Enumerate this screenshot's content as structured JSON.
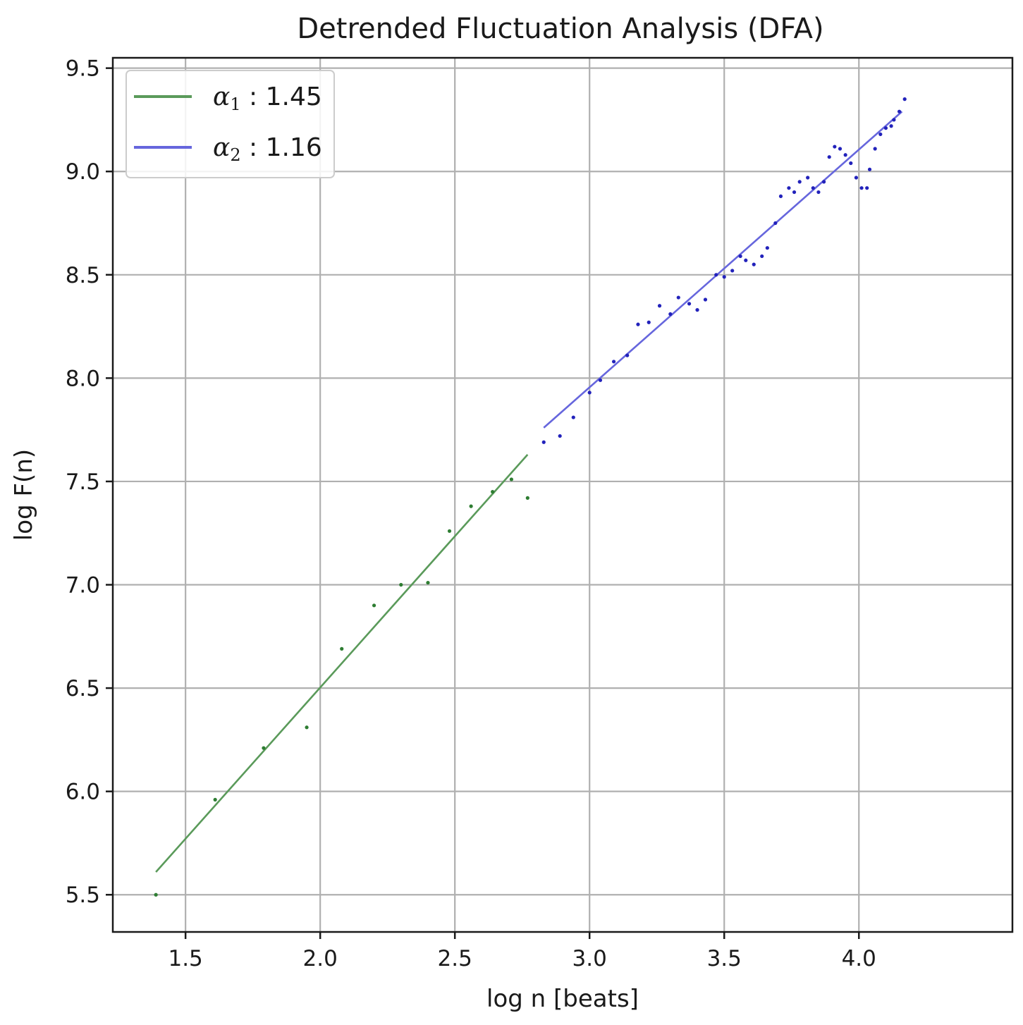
{
  "chart_data": {
    "type": "scatter",
    "title": "Detrended Fluctuation Analysis (DFA)",
    "xlabel": "log n [beats]",
    "ylabel": "log F(n)",
    "xlim": [
      1.23,
      4.57
    ],
    "ylim": [
      5.32,
      9.55
    ],
    "xticks": [
      1.5,
      2.0,
      2.5,
      3.0,
      3.5,
      4.0
    ],
    "xtick_labels": [
      "1.5",
      "2.0",
      "2.5",
      "3.0",
      "3.5",
      "4.0"
    ],
    "yticks": [
      5.5,
      6.0,
      6.5,
      7.0,
      7.5,
      8.0,
      8.5,
      9.0,
      9.5
    ],
    "ytick_labels": [
      "5.5",
      "6.0",
      "6.5",
      "7.0",
      "7.5",
      "8.0",
      "8.5",
      "9.0",
      "9.5"
    ],
    "grid": true,
    "legend": "top-left",
    "series": [
      {
        "name": "α₁ : 1.45",
        "symbol": "α",
        "subscript": "1",
        "value_text": " : 1.45",
        "color": "#5a9a5a",
        "point_color": "#2e7d32",
        "fit_line": {
          "x": [
            1.39,
            2.77
          ],
          "y": [
            5.61,
            7.63
          ]
        },
        "points": [
          [
            1.39,
            5.5
          ],
          [
            1.61,
            5.96
          ],
          [
            1.79,
            6.21
          ],
          [
            1.95,
            6.31
          ],
          [
            2.08,
            6.69
          ],
          [
            2.2,
            6.9
          ],
          [
            2.3,
            7.0
          ],
          [
            2.4,
            7.01
          ],
          [
            2.48,
            7.26
          ],
          [
            2.56,
            7.38
          ],
          [
            2.64,
            7.45
          ],
          [
            2.71,
            7.51
          ],
          [
            2.77,
            7.42
          ]
        ]
      },
      {
        "name": "α₂ : 1.16",
        "symbol": "α",
        "subscript": "2",
        "value_text": " : 1.16",
        "color": "#6666dd",
        "point_color": "#2222bb",
        "fit_line": {
          "x": [
            2.83,
            4.16
          ],
          "y": [
            7.76,
            9.29
          ]
        },
        "points": [
          [
            2.83,
            7.69
          ],
          [
            2.89,
            7.72
          ],
          [
            2.94,
            7.81
          ],
          [
            3.0,
            7.93
          ],
          [
            3.04,
            7.99
          ],
          [
            3.09,
            8.08
          ],
          [
            3.14,
            8.11
          ],
          [
            3.18,
            8.26
          ],
          [
            3.22,
            8.27
          ],
          [
            3.26,
            8.35
          ],
          [
            3.3,
            8.31
          ],
          [
            3.33,
            8.39
          ],
          [
            3.37,
            8.36
          ],
          [
            3.4,
            8.33
          ],
          [
            3.43,
            8.38
          ],
          [
            3.47,
            8.5
          ],
          [
            3.5,
            8.49
          ],
          [
            3.53,
            8.52
          ],
          [
            3.56,
            8.59
          ],
          [
            3.58,
            8.57
          ],
          [
            3.61,
            8.55
          ],
          [
            3.64,
            8.59
          ],
          [
            3.66,
            8.63
          ],
          [
            3.69,
            8.75
          ],
          [
            3.71,
            8.88
          ],
          [
            3.74,
            8.92
          ],
          [
            3.76,
            8.9
          ],
          [
            3.78,
            8.95
          ],
          [
            3.81,
            8.97
          ],
          [
            3.83,
            8.92
          ],
          [
            3.85,
            8.9
          ],
          [
            3.87,
            8.95
          ],
          [
            3.89,
            9.07
          ],
          [
            3.91,
            9.12
          ],
          [
            3.93,
            9.11
          ],
          [
            3.95,
            9.08
          ],
          [
            3.97,
            9.04
          ],
          [
            3.99,
            8.97
          ],
          [
            4.01,
            8.92
          ],
          [
            4.03,
            8.92
          ],
          [
            4.04,
            9.01
          ],
          [
            4.06,
            9.11
          ],
          [
            4.08,
            9.18
          ],
          [
            4.1,
            9.21
          ],
          [
            4.12,
            9.22
          ],
          [
            4.13,
            9.25
          ],
          [
            4.15,
            9.29
          ],
          [
            4.17,
            9.35
          ]
        ]
      }
    ]
  }
}
